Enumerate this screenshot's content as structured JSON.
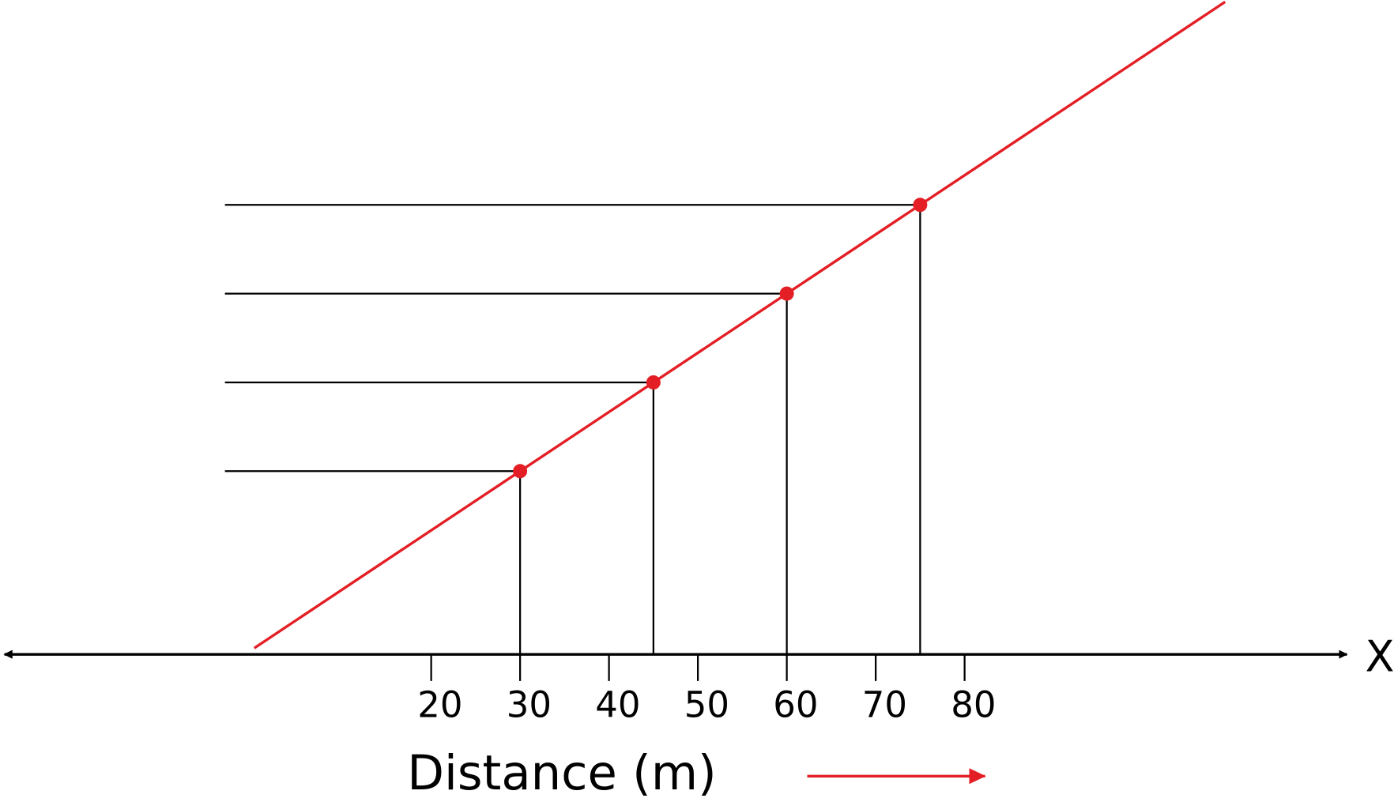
{
  "chart_data": {
    "type": "scatter",
    "xlabel": "Distance (m)",
    "axis_name": "X",
    "x": [
      30,
      45,
      60,
      75
    ],
    "xlim": [
      -28,
      123
    ],
    "xticks": [
      20,
      30,
      40,
      50,
      60,
      70,
      80
    ],
    "color": "#e31e24"
  }
}
